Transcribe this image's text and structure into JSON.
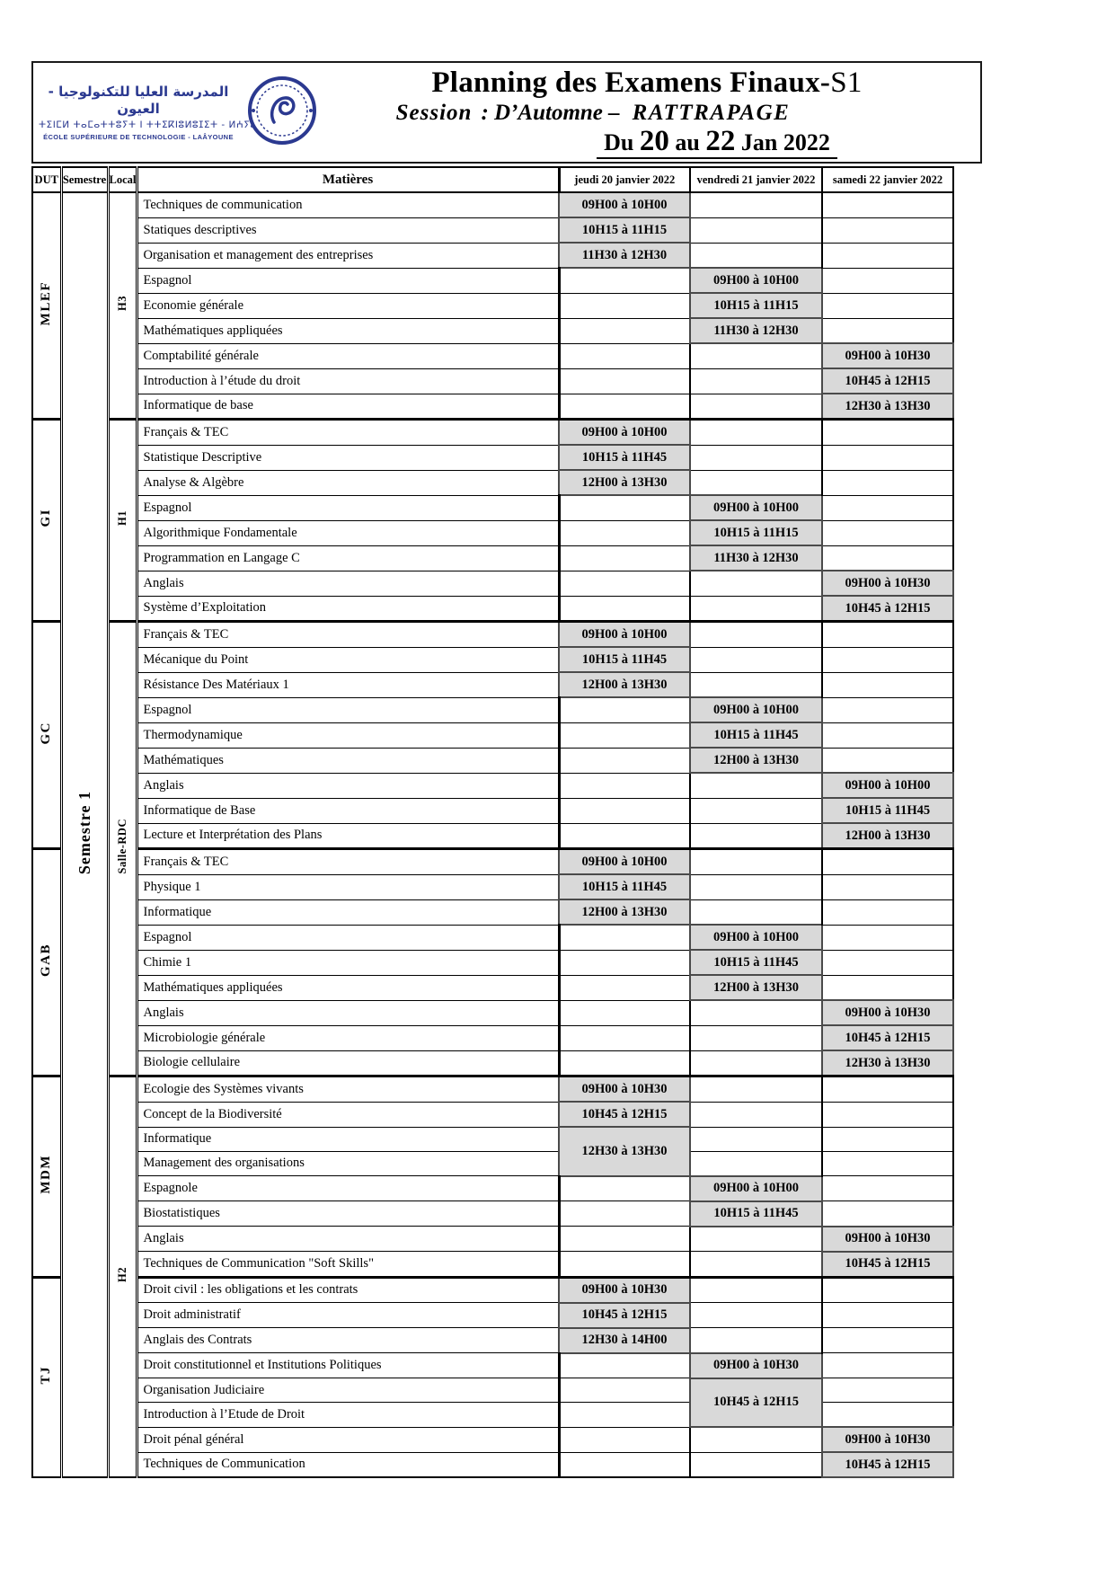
{
  "colors": {
    "accent_navy": "#2b3990",
    "time_cell_bg": "#d9d9d9"
  },
  "header": {
    "school_name_ar": "المدرسة العليا للتكنولوجيا - العيون",
    "school_name_tifinagh": "ⵜⵉⵏⵎⵍ ⵜⴰⵎⴰⵜⵜⵓⵢⵜ ⵏ ⵜⵜⵉⴽⵏⵓⵍⵓⵊⵉⵜ - ⵍⵄⵢⵓⵏ",
    "school_name_fr": "ÉCOLE SUPÉRIEURE DE TECHNOLOGIE - LAÂYOUNE",
    "title_main": "Planning des Examens Finaux-",
    "title_suffix": "S1",
    "session_label": "Session",
    "session_sep": ": D’Automne –",
    "session_value": "RATTRAPAGE",
    "date": {
      "prefix": "Du",
      "from": "20",
      "mid": "au",
      "to": "22",
      "suffix": "Jan 2022"
    }
  },
  "table": {
    "headers": [
      "DUT",
      "Semestre",
      "Local",
      "Matières",
      "jeudi 20 janvier 2022",
      "vendredi 21 janvier 2022",
      "samedi 22 janvier 2022"
    ],
    "semestre": "Semestre 1",
    "locals": [
      {
        "label": "H3",
        "rows": 9
      },
      {
        "label": "H1",
        "rows": 8
      },
      {
        "label": "Salle-RDC",
        "rows": 18
      },
      {
        "label": "H2",
        "rows": 16
      }
    ],
    "groups": [
      {
        "dut": "MLEF",
        "rows": [
          {
            "m": "Techniques de communication",
            "t": [
              "09H00 à 10H00",
              "",
              ""
            ]
          },
          {
            "m": "Statiques descriptives",
            "t": [
              "10H15 à 11H15",
              "",
              ""
            ]
          },
          {
            "m": "Organisation et management des entreprises",
            "t": [
              "11H30 à 12H30",
              "",
              ""
            ]
          },
          {
            "m": "Espagnol",
            "t": [
              "",
              "09H00 à 10H00",
              ""
            ]
          },
          {
            "m": "Economie générale",
            "t": [
              "",
              "10H15 à 11H15",
              ""
            ]
          },
          {
            "m": "Mathématiques appliquées",
            "t": [
              "",
              "11H30 à 12H30",
              ""
            ]
          },
          {
            "m": "Comptabilité générale",
            "t": [
              "",
              "",
              "09H00 à 10H30"
            ]
          },
          {
            "m": "Introduction à l’étude du droit",
            "t": [
              "",
              "",
              "10H45 à 12H15"
            ]
          },
          {
            "m": "Informatique de base",
            "t": [
              "",
              "",
              "12H30 à 13H30"
            ]
          }
        ]
      },
      {
        "dut": "GI",
        "rows": [
          {
            "m": "Français & TEC",
            "t": [
              "09H00 à 10H00",
              "",
              ""
            ]
          },
          {
            "m": "Statistique Descriptive",
            "t": [
              "10H15 à 11H45",
              "",
              ""
            ]
          },
          {
            "m": "Analyse & Algèbre",
            "t": [
              "12H00 à 13H30",
              "",
              ""
            ]
          },
          {
            "m": "Espagnol",
            "t": [
              "",
              "09H00 à 10H00",
              ""
            ]
          },
          {
            "m": "Algorithmique Fondamentale",
            "t": [
              "",
              "10H15 à 11H15",
              ""
            ]
          },
          {
            "m": "Programmation en Langage C",
            "t": [
              "",
              "11H30 à 12H30",
              ""
            ]
          },
          {
            "m": "Anglais",
            "t": [
              "",
              "",
              "09H00 à 10H30"
            ]
          },
          {
            "m": "Système d’Exploitation",
            "t": [
              "",
              "",
              "10H45 à 12H15"
            ]
          }
        ]
      },
      {
        "dut": "GC",
        "rows": [
          {
            "m": "Français & TEC",
            "t": [
              "09H00 à 10H00",
              "",
              ""
            ]
          },
          {
            "m": "Mécanique du Point",
            "t": [
              "10H15 à 11H45",
              "",
              ""
            ]
          },
          {
            "m": "Résistance Des Matériaux 1",
            "t": [
              "12H00 à 13H30",
              "",
              ""
            ]
          },
          {
            "m": "Espagnol",
            "t": [
              "",
              "09H00 à 10H00",
              ""
            ]
          },
          {
            "m": "Thermodynamique",
            "t": [
              "",
              "10H15 à 11H45",
              ""
            ]
          },
          {
            "m": "Mathématiques",
            "t": [
              "",
              "12H00 à 13H30",
              ""
            ]
          },
          {
            "m": "Anglais",
            "t": [
              "",
              "",
              "09H00 à 10H00"
            ]
          },
          {
            "m": "Informatique de Base",
            "t": [
              "",
              "",
              "10H15 à 11H45"
            ]
          },
          {
            "m": "Lecture et Interprétation des Plans",
            "t": [
              "",
              "",
              "12H00 à 13H30"
            ]
          }
        ]
      },
      {
        "dut": "GAB",
        "rows": [
          {
            "m": "Français & TEC",
            "t": [
              "09H00 à 10H00",
              "",
              ""
            ]
          },
          {
            "m": "Physique 1",
            "t": [
              "10H15 à 11H45",
              "",
              ""
            ]
          },
          {
            "m": "Informatique",
            "t": [
              "12H00 à 13H30",
              "",
              ""
            ]
          },
          {
            "m": "Espagnol",
            "t": [
              "",
              "09H00 à 10H00",
              ""
            ]
          },
          {
            "m": "Chimie 1",
            "t": [
              "",
              "10H15 à 11H45",
              ""
            ]
          },
          {
            "m": "Mathématiques appliquées",
            "t": [
              "",
              "12H00 à 13H30",
              ""
            ]
          },
          {
            "m": "Anglais",
            "t": [
              "",
              "",
              "09H00 à 10H30"
            ]
          },
          {
            "m": "Microbiologie générale",
            "t": [
              "",
              "",
              "10H45 à 12H15"
            ]
          },
          {
            "m": "Biologie cellulaire",
            "t": [
              "",
              "",
              "12H30 à 13H30"
            ]
          }
        ]
      },
      {
        "dut": "MDM",
        "rows": [
          {
            "m": "Ecologie des Systèmes vivants",
            "t": [
              "09H00 à 10H30",
              "",
              ""
            ]
          },
          {
            "m": "Concept de la Biodiversité",
            "t": [
              "10H45 à 12H15",
              "",
              ""
            ]
          },
          {
            "m": "Informatique",
            "t": [
              "12H30 à 13H30",
              "",
              ""
            ],
            "span": [
              2,
              1,
              1
            ]
          },
          {
            "m": "Management des organisations",
            "t": [
              null,
              "",
              ""
            ]
          },
          {
            "m": "Espagnole",
            "t": [
              "",
              "09H00 à 10H00",
              ""
            ]
          },
          {
            "m": "Biostatistiques",
            "t": [
              "",
              "10H15 à 11H45",
              ""
            ]
          },
          {
            "m": "Anglais",
            "t": [
              "",
              "",
              "09H00 à 10H30"
            ]
          },
          {
            "m": "Techniques de Communication \"Soft Skills\"",
            "t": [
              "",
              "",
              "10H45 à 12H15"
            ]
          }
        ]
      },
      {
        "dut": "TJ",
        "rows": [
          {
            "m": "Droit civil : les obligations et les contrats",
            "t": [
              "09H00 à 10H30",
              "",
              ""
            ]
          },
          {
            "m": "Droit administratif",
            "t": [
              "10H45 à 12H15",
              "",
              ""
            ]
          },
          {
            "m": "Anglais des Contrats",
            "t": [
              "12H30 à 14H00",
              "",
              ""
            ]
          },
          {
            "m": "Droit constitutionnel et Institutions Politiques",
            "t": [
              "",
              "09H00 à 10H30",
              ""
            ]
          },
          {
            "m": "Organisation Judiciaire",
            "t": [
              "",
              "10H45 à 12H15",
              ""
            ],
            "span": [
              1,
              2,
              1
            ]
          },
          {
            "m": "Introduction à l’Etude de Droit",
            "t": [
              "",
              null,
              ""
            ]
          },
          {
            "m": "Droit pénal général",
            "t": [
              "",
              "",
              "09H00 à 10H30"
            ]
          },
          {
            "m": "Techniques de Communication",
            "t": [
              "",
              "",
              "10H45 à 12H15"
            ]
          }
        ]
      }
    ]
  }
}
